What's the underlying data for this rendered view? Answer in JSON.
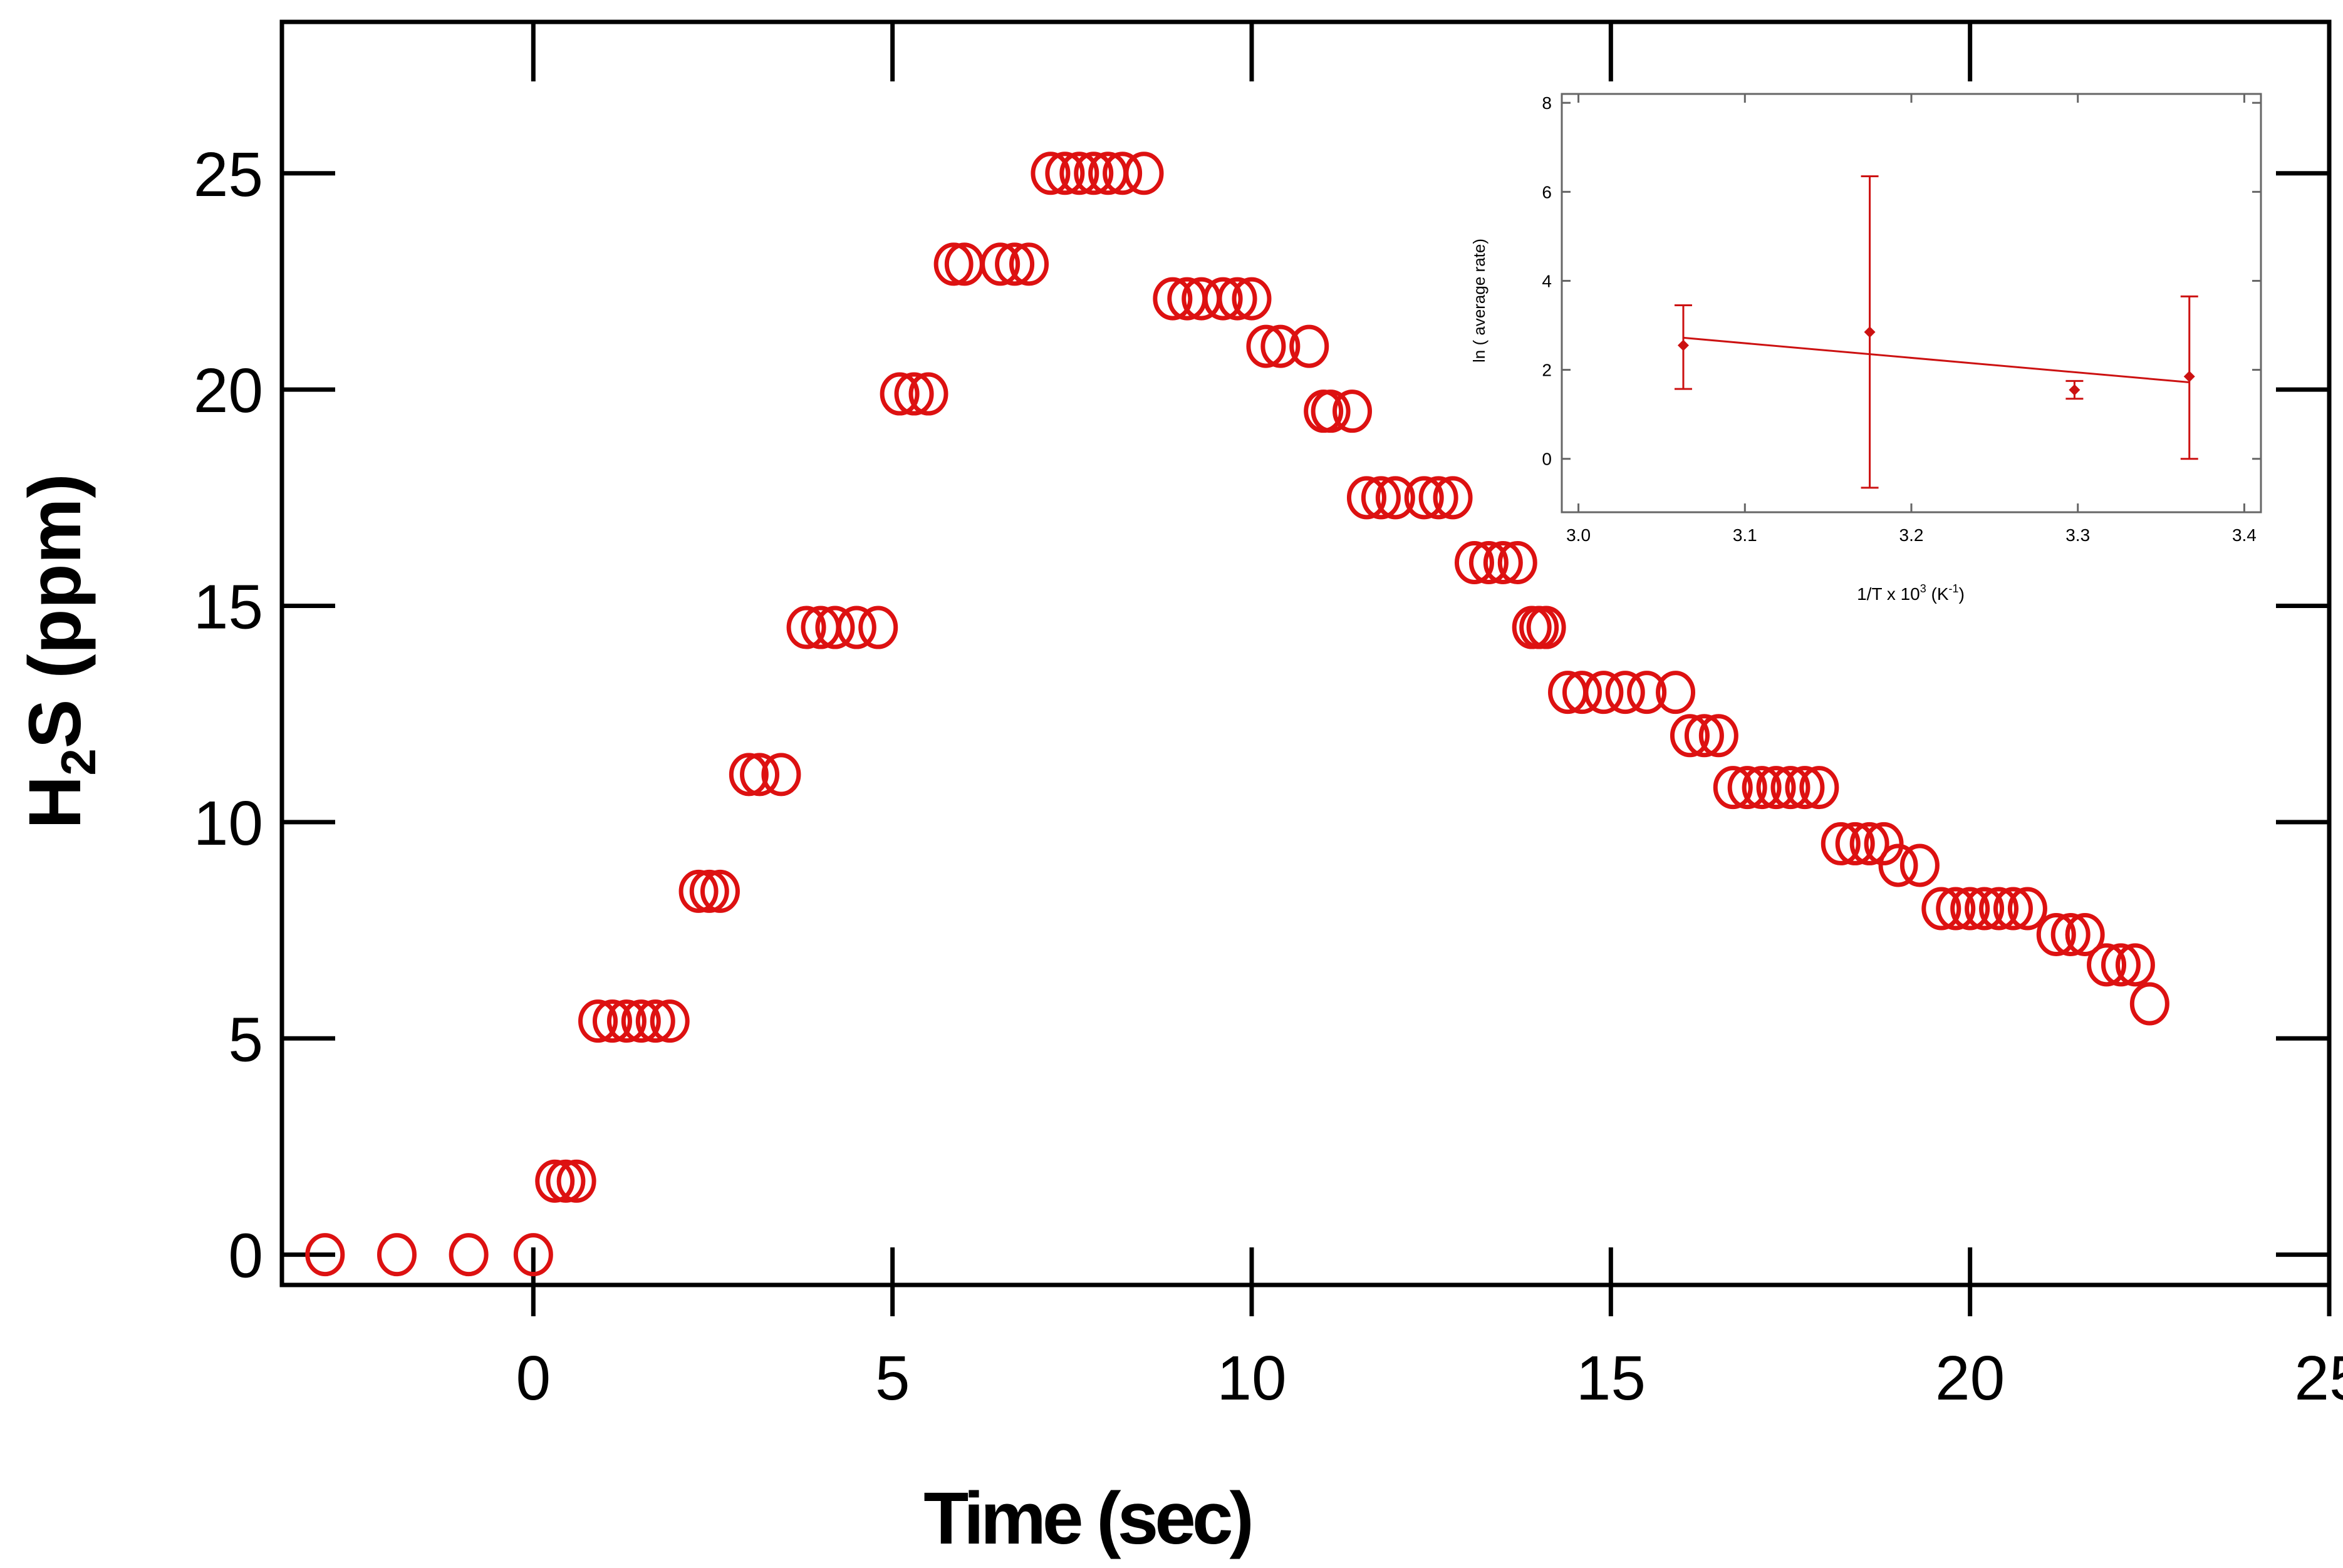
{
  "chart_data": [
    {
      "type": "scatter",
      "title": "",
      "xlabel": "Time (sec)",
      "ylabel_parts": {
        "pre": "H",
        "sub": "2",
        "post": "S (ppm)"
      },
      "xlim": [
        -3.5,
        25
      ],
      "ylim": [
        -0.7,
        28.5
      ],
      "xticks": [
        0,
        5,
        10,
        15,
        20,
        25
      ],
      "yticks": [
        0,
        5,
        10,
        15,
        20,
        25
      ],
      "marker": "open-circle",
      "color": "#dd1111",
      "series": [
        {
          "name": "H2S",
          "points": [
            [
              -2.9,
              0
            ],
            [
              -1.9,
              0
            ],
            [
              -0.9,
              0
            ],
            [
              0.0,
              0
            ],
            [
              0.3,
              1.7
            ],
            [
              0.45,
              1.7
            ],
            [
              0.6,
              1.7
            ],
            [
              0.9,
              5.4
            ],
            [
              1.1,
              5.4
            ],
            [
              1.3,
              5.4
            ],
            [
              1.5,
              5.4
            ],
            [
              1.7,
              5.4
            ],
            [
              1.9,
              5.4
            ],
            [
              2.3,
              8.4
            ],
            [
              2.45,
              8.4
            ],
            [
              2.6,
              8.4
            ],
            [
              3.0,
              11.1
            ],
            [
              3.15,
              11.1
            ],
            [
              3.45,
              11.1
            ],
            [
              3.8,
              14.5
            ],
            [
              4.0,
              14.5
            ],
            [
              4.2,
              14.5
            ],
            [
              4.5,
              14.5
            ],
            [
              4.8,
              14.5
            ],
            [
              5.1,
              19.9
            ],
            [
              5.3,
              19.9
            ],
            [
              5.5,
              19.9
            ],
            [
              5.85,
              22.9
            ],
            [
              6.0,
              22.9
            ],
            [
              6.5,
              22.9
            ],
            [
              6.7,
              22.9
            ],
            [
              6.9,
              22.9
            ],
            [
              7.2,
              25
            ],
            [
              7.4,
              25
            ],
            [
              7.6,
              25
            ],
            [
              7.8,
              25
            ],
            [
              8.0,
              25
            ],
            [
              8.2,
              25
            ],
            [
              8.5,
              25
            ],
            [
              8.9,
              22.1
            ],
            [
              9.1,
              22.1
            ],
            [
              9.3,
              22.1
            ],
            [
              9.6,
              22.1
            ],
            [
              9.8,
              22.1
            ],
            [
              10.0,
              22.1
            ],
            [
              10.2,
              21.0
            ],
            [
              10.4,
              21.0
            ],
            [
              10.8,
              21.0
            ],
            [
              11.0,
              19.5
            ],
            [
              11.1,
              19.5
            ],
            [
              11.4,
              19.5
            ],
            [
              11.6,
              17.5
            ],
            [
              11.8,
              17.5
            ],
            [
              12.0,
              17.5
            ],
            [
              12.4,
              17.5
            ],
            [
              12.6,
              17.5
            ],
            [
              12.8,
              17.5
            ],
            [
              13.1,
              16.0
            ],
            [
              13.3,
              16.0
            ],
            [
              13.5,
              16.0
            ],
            [
              13.7,
              16.0
            ],
            [
              13.9,
              14.5
            ],
            [
              14.0,
              14.5
            ],
            [
              14.1,
              14.5
            ],
            [
              14.4,
              13.0
            ],
            [
              14.6,
              13.0
            ],
            [
              14.9,
              13.0
            ],
            [
              15.2,
              13.0
            ],
            [
              15.5,
              13.0
            ],
            [
              15.9,
              13.0
            ],
            [
              16.1,
              12.0
            ],
            [
              16.3,
              12.0
            ],
            [
              16.5,
              12.0
            ],
            [
              16.7,
              10.8
            ],
            [
              16.9,
              10.8
            ],
            [
              17.1,
              10.8
            ],
            [
              17.3,
              10.8
            ],
            [
              17.5,
              10.8
            ],
            [
              17.7,
              10.8
            ],
            [
              17.9,
              10.8
            ],
            [
              18.2,
              9.5
            ],
            [
              18.4,
              9.5
            ],
            [
              18.6,
              9.5
            ],
            [
              18.8,
              9.5
            ],
            [
              19.0,
              9.0
            ],
            [
              19.3,
              9.0
            ],
            [
              19.6,
              8.0
            ],
            [
              19.8,
              8.0
            ],
            [
              20.0,
              8.0
            ],
            [
              20.2,
              8.0
            ],
            [
              20.4,
              8.0
            ],
            [
              20.6,
              8.0
            ],
            [
              20.8,
              8.0
            ],
            [
              21.2,
              7.4
            ],
            [
              21.4,
              7.4
            ],
            [
              21.6,
              7.4
            ],
            [
              21.9,
              6.7
            ],
            [
              22.1,
              6.7
            ],
            [
              22.3,
              6.7
            ],
            [
              22.5,
              5.8
            ]
          ]
        }
      ]
    },
    {
      "type": "scatter",
      "title": "",
      "xlabel_parts": {
        "pre": "1/T x 10",
        "sup1": "3",
        "mid": " (K",
        "sup2": "-1",
        "post": ")"
      },
      "ylabel": "ln ( average rate)",
      "xlim": [
        2.99,
        3.41
      ],
      "ylim": [
        -1.2,
        8.2
      ],
      "xticks": [
        "3.0",
        "3.1",
        "3.2",
        "3.3",
        "3.4"
      ],
      "yticks": [
        "0",
        "2",
        "4",
        "6",
        "8"
      ],
      "color": "#cc1111",
      "series": [
        {
          "name": "ln(average rate)",
          "points": [
            {
              "x": 3.063,
              "y": 2.55,
              "err_low": 1.57,
              "err_high": 3.45
            },
            {
              "x": 3.175,
              "y": 2.85,
              "err_low": -0.65,
              "err_high": 6.35
            },
            {
              "x": 3.298,
              "y": 1.55,
              "err_low": 1.35,
              "err_high": 1.75
            },
            {
              "x": 3.367,
              "y": 1.85,
              "err_low": 0.0,
              "err_high": 3.65
            }
          ]
        }
      ],
      "fit_line": {
        "x": [
          3.063,
          3.367
        ],
        "y": [
          2.72,
          1.72
        ]
      }
    }
  ]
}
